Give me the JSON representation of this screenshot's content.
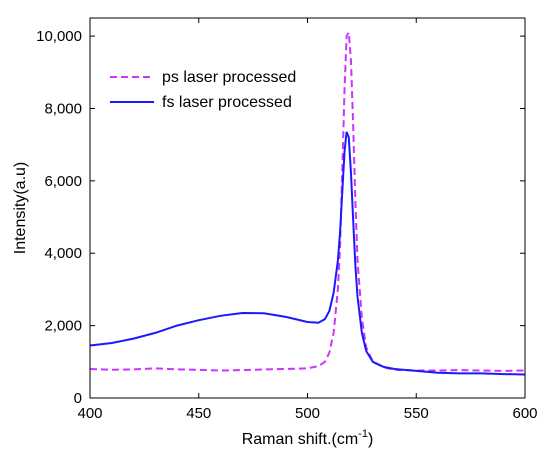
{
  "chart_data": {
    "type": "line",
    "title": "",
    "xlabel": "Raman shift.(cm",
    "xlabel_sup": "-1",
    "xlabel_suffix": ")",
    "ylabel": "Intensity(a.u)",
    "xlim": [
      400,
      600
    ],
    "ylim": [
      0,
      10500
    ],
    "xticks": [
      400,
      450,
      500,
      550,
      600
    ],
    "xtick_labels": [
      "400",
      "450",
      "500",
      "550",
      "600"
    ],
    "yticks": [
      0,
      2000,
      4000,
      6000,
      8000,
      10000
    ],
    "ytick_labels": [
      "0",
      "2,000",
      "4,000",
      "6,000",
      "8,000",
      "10,000"
    ],
    "grid": false,
    "legend_position": "top-left",
    "series": [
      {
        "name": "ps laser processed",
        "color": "#cc33ff",
        "style": "dashed",
        "points": [
          [
            400,
            800
          ],
          [
            410,
            780
          ],
          [
            420,
            790
          ],
          [
            430,
            820
          ],
          [
            440,
            790
          ],
          [
            450,
            780
          ],
          [
            460,
            760
          ],
          [
            470,
            770
          ],
          [
            480,
            790
          ],
          [
            490,
            800
          ],
          [
            500,
            820
          ],
          [
            505,
            880
          ],
          [
            508,
            1000
          ],
          [
            510,
            1250
          ],
          [
            512,
            1800
          ],
          [
            514,
            3000
          ],
          [
            515,
            4200
          ],
          [
            516,
            6300
          ],
          [
            517,
            8500
          ],
          [
            518,
            10000
          ],
          [
            519,
            10100
          ],
          [
            520,
            9300
          ],
          [
            521,
            7500
          ],
          [
            522,
            5500
          ],
          [
            523,
            3800
          ],
          [
            525,
            2200
          ],
          [
            527,
            1400
          ],
          [
            530,
            1000
          ],
          [
            535,
            850
          ],
          [
            540,
            780
          ],
          [
            550,
            760
          ],
          [
            560,
            760
          ],
          [
            570,
            770
          ],
          [
            580,
            760
          ],
          [
            590,
            750
          ],
          [
            600,
            760
          ]
        ]
      },
      {
        "name": "fs laser processed",
        "color": "#1a1aff",
        "style": "solid",
        "points": [
          [
            400,
            1450
          ],
          [
            410,
            1520
          ],
          [
            420,
            1640
          ],
          [
            430,
            1800
          ],
          [
            440,
            2000
          ],
          [
            450,
            2150
          ],
          [
            460,
            2270
          ],
          [
            470,
            2350
          ],
          [
            480,
            2340
          ],
          [
            490,
            2240
          ],
          [
            500,
            2100
          ],
          [
            505,
            2080
          ],
          [
            508,
            2180
          ],
          [
            510,
            2400
          ],
          [
            512,
            2900
          ],
          [
            514,
            3800
          ],
          [
            515,
            4600
          ],
          [
            516,
            5700
          ],
          [
            517,
            6800
          ],
          [
            518,
            7350
          ],
          [
            519,
            7200
          ],
          [
            520,
            6200
          ],
          [
            521,
            4900
          ],
          [
            522,
            3700
          ],
          [
            523,
            2800
          ],
          [
            525,
            1800
          ],
          [
            527,
            1300
          ],
          [
            530,
            1000
          ],
          [
            535,
            860
          ],
          [
            540,
            800
          ],
          [
            550,
            750
          ],
          [
            560,
            700
          ],
          [
            570,
            680
          ],
          [
            580,
            680
          ],
          [
            590,
            660
          ],
          [
            600,
            650
          ]
        ]
      }
    ]
  }
}
